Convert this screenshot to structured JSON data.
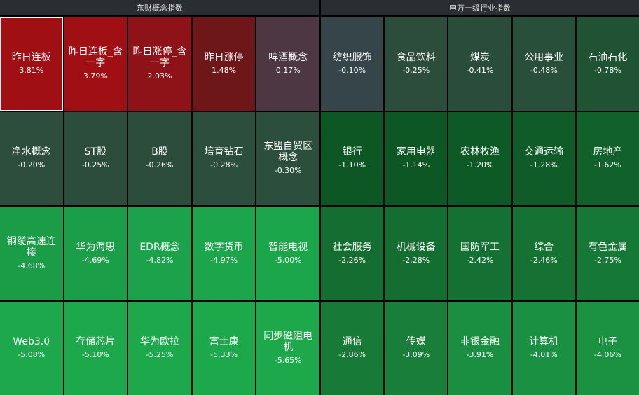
{
  "panels": [
    {
      "title": "东财概念指数",
      "tiles": [
        {
          "name": "昨日连板",
          "change": "3.81%",
          "color": "#a00f14",
          "selected": true
        },
        {
          "name": "昨日连板_含一字",
          "change": "3.79%",
          "color": "#a00f14"
        },
        {
          "name": "昨日涨停_含一字",
          "change": "2.03%",
          "color": "#8e1318"
        },
        {
          "name": "昨日涨停",
          "change": "1.48%",
          "color": "#6d1719"
        },
        {
          "name": "啤酒概念",
          "change": "0.17%",
          "color": "#4d3742"
        },
        {
          "name": "净水概念",
          "change": "-0.20%",
          "color": "#2d4d3d"
        },
        {
          "name": "ST股",
          "change": "-0.25%",
          "color": "#2c4d3c"
        },
        {
          "name": "B股",
          "change": "-0.26%",
          "color": "#2c4d3c"
        },
        {
          "name": "培育钻石",
          "change": "-0.28%",
          "color": "#2c4e3c"
        },
        {
          "name": "东盟自贸区概念",
          "change": "-0.30%",
          "color": "#2c4e3c"
        },
        {
          "name": "铜缆高速连接",
          "change": "-4.68%",
          "color": "#1b9c47"
        },
        {
          "name": "华为海思",
          "change": "-4.69%",
          "color": "#1b9e48"
        },
        {
          "name": "EDR概念",
          "change": "-4.82%",
          "color": "#1ca24a"
        },
        {
          "name": "数字货币",
          "change": "-4.97%",
          "color": "#1ca54b"
        },
        {
          "name": "智能电视",
          "change": "-5.00%",
          "color": "#1ca64b"
        },
        {
          "name": "Web3.0",
          "change": "-5.08%",
          "color": "#1da84c"
        },
        {
          "name": "存储芯片",
          "change": "-5.10%",
          "color": "#1da84c"
        },
        {
          "name": "华为欧拉",
          "change": "-5.25%",
          "color": "#1da84c"
        },
        {
          "name": "富士康",
          "change": "-5.33%",
          "color": "#1da84c"
        },
        {
          "name": "同步磁阻电机",
          "change": "-5.65%",
          "color": "#1da84c"
        }
      ]
    },
    {
      "title": "申万一级行业指数",
      "tiles": [
        {
          "name": "纺织服饰",
          "change": "-0.10%",
          "color": "#35454a"
        },
        {
          "name": "食品饮料",
          "change": "-0.25%",
          "color": "#2c4d3c"
        },
        {
          "name": "煤炭",
          "change": "-0.41%",
          "color": "#2a4d3b"
        },
        {
          "name": "公用事业",
          "change": "-0.48%",
          "color": "#274f39"
        },
        {
          "name": "石油石化",
          "change": "-0.78%",
          "color": "#1f5334"
        },
        {
          "name": "银行",
          "change": "-1.10%",
          "color": "#0d5725"
        },
        {
          "name": "家用电器",
          "change": "-1.14%",
          "color": "#0d5725"
        },
        {
          "name": "农林牧渔",
          "change": "-1.20%",
          "color": "#0e5a27"
        },
        {
          "name": "交通运输",
          "change": "-1.28%",
          "color": "#0f5c28"
        },
        {
          "name": "房地产",
          "change": "-1.62%",
          "color": "#10612a"
        },
        {
          "name": "社会服务",
          "change": "-2.26%",
          "color": "#146e31"
        },
        {
          "name": "机械设备",
          "change": "-2.28%",
          "color": "#146e31"
        },
        {
          "name": "国防军工",
          "change": "-2.42%",
          "color": "#157133"
        },
        {
          "name": "综合",
          "change": "-2.46%",
          "color": "#157233"
        },
        {
          "name": "有色金属",
          "change": "-2.75%",
          "color": "#167836"
        },
        {
          "name": "通信",
          "change": "-2.86%",
          "color": "#177a37"
        },
        {
          "name": "传媒",
          "change": "-3.09%",
          "color": "#187e39"
        },
        {
          "name": "非银金融",
          "change": "-3.91%",
          "color": "#1a8f41"
        },
        {
          "name": "计算机",
          "change": "-4.01%",
          "color": "#1a9142"
        },
        {
          "name": "电子",
          "change": "-4.06%",
          "color": "#1a9242"
        }
      ]
    }
  ]
}
